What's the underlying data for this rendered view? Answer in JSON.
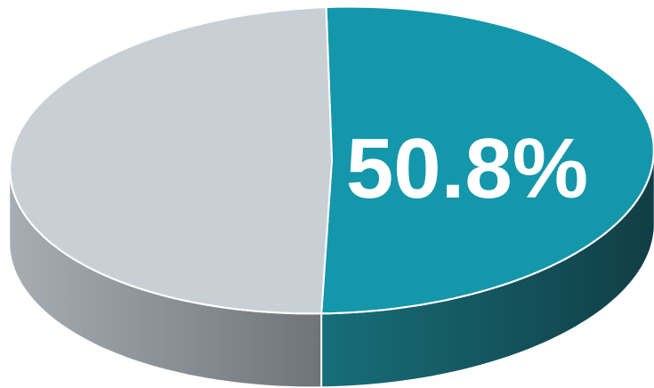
{
  "chart_data": {
    "type": "pie",
    "title": "",
    "style": "3d-tilted",
    "slices": [
      {
        "name": "",
        "value": 50.8,
        "color": "#1497aa",
        "side_color": "#14545d",
        "label": "50.8%"
      },
      {
        "name": "",
        "value": 49.2,
        "color": "#c8d0d6",
        "side_color": "#8c9195",
        "label": ""
      }
    ],
    "data_labels": [
      "50.8%"
    ],
    "legend": "none"
  }
}
